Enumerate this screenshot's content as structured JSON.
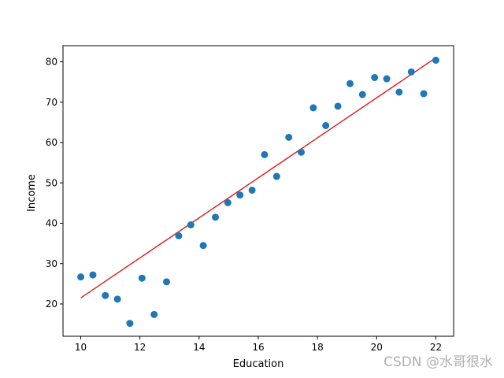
{
  "chart_data": {
    "type": "scatter",
    "title": "",
    "xlabel": "Education",
    "ylabel": "Income",
    "xlim": [
      9.4,
      22.6
    ],
    "ylim": [
      12,
      84
    ],
    "xticks": [
      10,
      12,
      14,
      16,
      18,
      20,
      22
    ],
    "yticks": [
      20,
      30,
      40,
      50,
      60,
      70,
      80
    ],
    "grid": false,
    "legend": "none",
    "colors": {
      "points": "#1f77b4",
      "fit_line": "#d62728"
    },
    "points": {
      "x": [
        10.0,
        10.41,
        10.83,
        11.24,
        11.66,
        12.07,
        12.48,
        12.9,
        13.31,
        13.72,
        14.14,
        14.55,
        14.97,
        15.38,
        15.79,
        16.21,
        16.62,
        17.03,
        17.45,
        17.86,
        18.28,
        18.69,
        19.1,
        19.52,
        19.93,
        20.34,
        20.76,
        21.17,
        21.59,
        22.0
      ],
      "y": [
        26.7,
        27.2,
        22.1,
        21.2,
        15.2,
        26.4,
        17.4,
        25.5,
        36.9,
        39.6,
        34.5,
        41.5,
        45.1,
        47.0,
        48.2,
        57.0,
        51.6,
        61.3,
        57.6,
        68.6,
        64.2,
        69.0,
        74.6,
        71.9,
        76.1,
        75.8,
        72.5,
        77.5,
        72.1,
        80.4
      ]
    },
    "fit_line": {
      "x": [
        10,
        22
      ],
      "y": [
        21.5,
        81.0
      ]
    }
  },
  "watermark": "CSDN @水哥很水"
}
